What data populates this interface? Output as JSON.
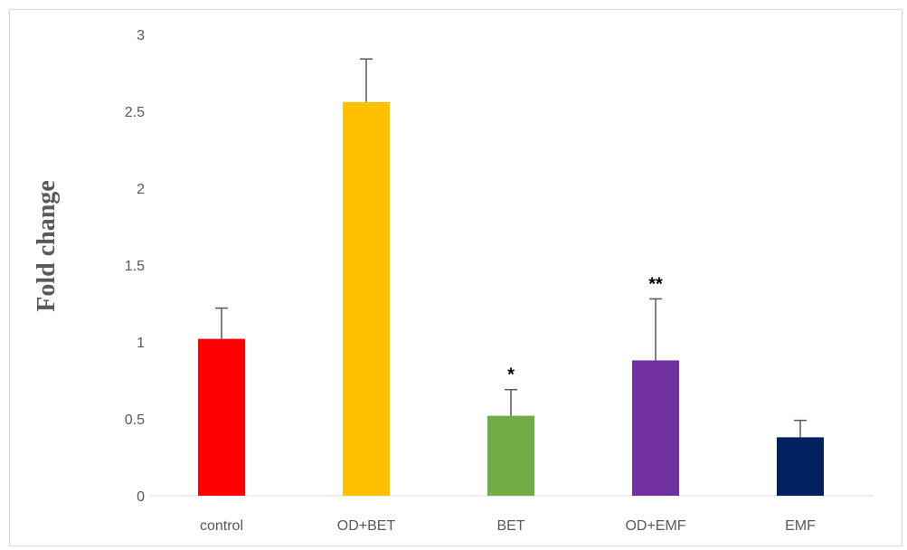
{
  "chart_data": {
    "type": "bar",
    "categories": [
      "control",
      "OD+BET",
      "BET",
      "OD+EMF",
      "EMF"
    ],
    "values": [
      1.02,
      2.56,
      0.52,
      0.88,
      0.38
    ],
    "errors": [
      0.2,
      0.28,
      0.17,
      0.4,
      0.11
    ],
    "colors": [
      "#ff0000",
      "#ffc000",
      "#70ad47",
      "#7030a0",
      "#002060"
    ],
    "annotations": [
      "",
      "",
      "*",
      "**",
      ""
    ],
    "ylabel": "Fold change",
    "xlabel": "",
    "title": "",
    "ylim": [
      0,
      3
    ],
    "yticks": [
      "0",
      "0.5",
      "1",
      "1.5",
      "2",
      "2.5",
      "3"
    ],
    "grid": false,
    "legend": "none"
  }
}
